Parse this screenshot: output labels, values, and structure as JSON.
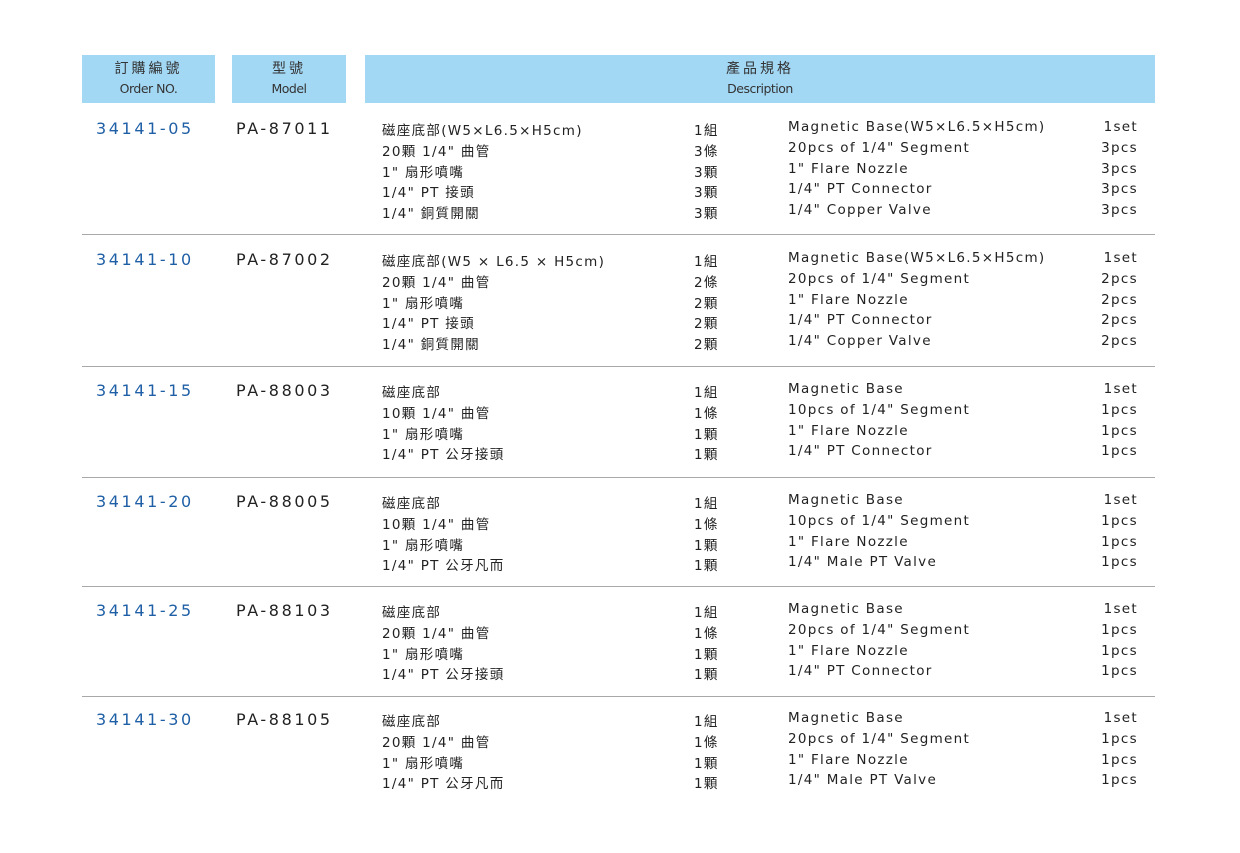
{
  "header": {
    "order": {
      "cn": "訂購編號",
      "en": "Order NO."
    },
    "model": {
      "cn": "型號",
      "en": "Model"
    },
    "description": {
      "cn": "產品規格",
      "en": "Description"
    },
    "color": "#a3d8f5"
  },
  "accent_color": "#1f5fa6",
  "groups": [
    {
      "order": "34141-05",
      "model": "PA-87011",
      "items": [
        {
          "cn": "磁座底部(W5×L6.5×H5cm)",
          "cn_qty": "1組",
          "en": "Magnetic Base(W5×L6.5×H5cm)",
          "en_qty": "1set"
        },
        {
          "cn": "20顆 1/4\" 曲管",
          "cn_qty": "3條",
          "en": "20pcs of 1/4\" Segment",
          "en_qty": "3pcs"
        },
        {
          "cn": "1\" 扇形噴嘴",
          "cn_qty": "3顆",
          "en": "1\" Flare Nozzle",
          "en_qty": "3pcs"
        },
        {
          "cn": "1/4\" PT 接頭",
          "cn_qty": "3顆",
          "en": "1/4\" PT Connector",
          "en_qty": "3pcs"
        },
        {
          "cn": "1/4\" 銅質開關",
          "cn_qty": "3顆",
          "en": "1/4\" Copper Valve",
          "en_qty": "3pcs"
        }
      ]
    },
    {
      "order": "34141-10",
      "model": "PA-87002",
      "items": [
        {
          "cn": "磁座底部(W5 × L6.5 × H5cm)",
          "cn_qty": "1組",
          "en": "Magnetic Base(W5×L6.5×H5cm)",
          "en_qty": "1set"
        },
        {
          "cn": "20顆 1/4\" 曲管",
          "cn_qty": "2條",
          "en": "20pcs of 1/4\" Segment",
          "en_qty": "2pcs"
        },
        {
          "cn": "1\" 扇形噴嘴",
          "cn_qty": "2顆",
          "en": "1\" Flare Nozzle",
          "en_qty": "2pcs"
        },
        {
          "cn": "1/4\" PT 接頭",
          "cn_qty": "2顆",
          "en": "1/4\" PT Connector",
          "en_qty": "2pcs"
        },
        {
          "cn": "1/4\" 銅質開關",
          "cn_qty": "2顆",
          "en": "1/4\" Copper Valve",
          "en_qty": "2pcs"
        }
      ]
    },
    {
      "order": "34141-15",
      "model": "PA-88003",
      "items": [
        {
          "cn": "磁座底部",
          "cn_qty": "1組",
          "en": "Magnetic Base",
          "en_qty": "1set"
        },
        {
          "cn": "10顆 1/4\" 曲管",
          "cn_qty": "1條",
          "en": "10pcs of 1/4\" Segment",
          "en_qty": "1pcs"
        },
        {
          "cn": "1\" 扇形噴嘴",
          "cn_qty": "1顆",
          "en": "1\" Flare Nozzle",
          "en_qty": "1pcs"
        },
        {
          "cn": "1/4\" PT 公牙接頭",
          "cn_qty": "1顆",
          "en": "1/4\" PT Connector",
          "en_qty": "1pcs"
        }
      ]
    },
    {
      "order": "34141-20",
      "model": "PA-88005",
      "items": [
        {
          "cn": "磁座底部",
          "cn_qty": "1組",
          "en": "Magnetic Base",
          "en_qty": "1set"
        },
        {
          "cn": "10顆 1/4\" 曲管",
          "cn_qty": "1條",
          "en": "10pcs of 1/4\" Segment",
          "en_qty": "1pcs"
        },
        {
          "cn": "1\" 扇形噴嘴",
          "cn_qty": "1顆",
          "en": "1\" Flare Nozzle",
          "en_qty": "1pcs"
        },
        {
          "cn": "1/4\" PT 公牙凡而",
          "cn_qty": "1顆",
          "en": "1/4\" Male PT Valve",
          "en_qty": "1pcs"
        }
      ]
    },
    {
      "order": "34141-25",
      "model": "PA-88103",
      "items": [
        {
          "cn": "磁座底部",
          "cn_qty": "1組",
          "en": "Magnetic Base",
          "en_qty": "1set"
        },
        {
          "cn": "20顆 1/4\" 曲管",
          "cn_qty": "1條",
          "en": "20pcs of 1/4\" Segment",
          "en_qty": "1pcs"
        },
        {
          "cn": "1\" 扇形噴嘴",
          "cn_qty": "1顆",
          "en": "1\" Flare Nozzle",
          "en_qty": "1pcs"
        },
        {
          "cn": "1/4\" PT 公牙接頭",
          "cn_qty": "1顆",
          "en": "1/4\" PT Connector",
          "en_qty": "1pcs"
        }
      ]
    },
    {
      "order": "34141-30",
      "model": "PA-88105",
      "items": [
        {
          "cn": "磁座底部",
          "cn_qty": "1組",
          "en": "Magnetic Base",
          "en_qty": "1set"
        },
        {
          "cn": "20顆 1/4\" 曲管",
          "cn_qty": "1條",
          "en": "20pcs of 1/4\" Segment",
          "en_qty": "1pcs"
        },
        {
          "cn": "1\" 扇形噴嘴",
          "cn_qty": "1顆",
          "en": "1\" Flare Nozzle",
          "en_qty": "1pcs"
        },
        {
          "cn": "1/4\" PT 公牙凡而",
          "cn_qty": "1顆",
          "en": "1/4\" Male PT Valve",
          "en_qty": "1pcs"
        }
      ]
    }
  ]
}
